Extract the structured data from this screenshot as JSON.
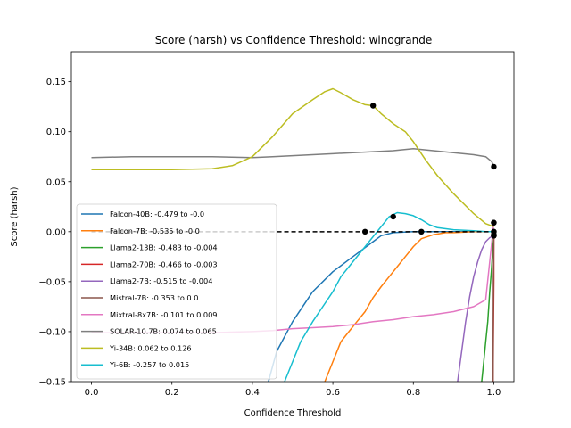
{
  "chart_data": {
    "type": "line",
    "title": "Score (harsh) vs Confidence Threshold: winogrande",
    "xlabel": "Confidence Threshold",
    "ylabel": "Score (harsh)",
    "xlim": [
      -0.05,
      1.05
    ],
    "ylim": [
      -0.15,
      0.18
    ],
    "xticks": [
      "0.0",
      "0.2",
      "0.4",
      "0.6",
      "0.8",
      "1.0"
    ],
    "xtick_values": [
      0.0,
      0.2,
      0.4,
      0.6,
      0.8,
      1.0
    ],
    "yticks": [
      "−0.15",
      "−0.10",
      "−0.05",
      "0.00",
      "0.05",
      "0.10",
      "0.15"
    ],
    "ytick_values": [
      -0.15,
      -0.1,
      -0.05,
      0.0,
      0.05,
      0.1,
      0.15
    ],
    "grid": false,
    "legend_position": "lower-left",
    "reference_line": {
      "y": 0.0,
      "x_range": [
        0.0,
        1.0
      ],
      "style": "dashed",
      "color": "#000000"
    },
    "series": [
      {
        "name": "Falcon-40B: -0.479 to -0.0",
        "color": "#1f77b4",
        "x": [
          0.44,
          0.46,
          0.5,
          0.55,
          0.6,
          0.65,
          0.7,
          0.72,
          0.75,
          0.8,
          0.85,
          0.9,
          0.95,
          1.0
        ],
        "y": [
          -0.15,
          -0.12,
          -0.09,
          -0.06,
          -0.04,
          -0.025,
          -0.01,
          -0.004,
          -0.001,
          0.0,
          0.0,
          0.0,
          0.0,
          0.0
        ],
        "marker": [
          1.0,
          0.0
        ]
      },
      {
        "name": "Falcon-7B: -0.535 to -0.0",
        "color": "#ff7f0e",
        "x": [
          0.58,
          0.6,
          0.62,
          0.64,
          0.66,
          0.68,
          0.7,
          0.72,
          0.74,
          0.76,
          0.78,
          0.8,
          0.82,
          0.85,
          0.88,
          0.9,
          0.95,
          0.98,
          1.0
        ],
        "y": [
          -0.15,
          -0.13,
          -0.11,
          -0.1,
          -0.09,
          -0.08,
          -0.066,
          -0.055,
          -0.045,
          -0.035,
          -0.025,
          -0.015,
          -0.007,
          -0.003,
          -0.001,
          -0.001,
          0.0,
          0.0,
          0.0
        ],
        "marker": [
          0.82,
          0.0
        ]
      },
      {
        "name": "Llama2-13B: -0.483 to -0.004",
        "color": "#2ca02c",
        "x": [
          0.97,
          0.975,
          0.98,
          0.985,
          0.99,
          0.994,
          0.997,
          1.0
        ],
        "y": [
          -0.15,
          -0.13,
          -0.11,
          -0.09,
          -0.06,
          -0.04,
          -0.02,
          -0.004
        ],
        "marker": [
          1.0,
          -0.004
        ]
      },
      {
        "name": "Llama2-70B: -0.466 to -0.003",
        "color": "#d62728",
        "x": [
          0.998,
          0.999,
          1.0,
          1.0
        ],
        "y": [
          -0.15,
          -0.1,
          -0.05,
          -0.003
        ],
        "marker": [
          1.0,
          -0.003
        ]
      },
      {
        "name": "Llama2-7B: -0.515 to -0.004",
        "color": "#9467bd",
        "x": [
          0.91,
          0.92,
          0.93,
          0.94,
          0.95,
          0.96,
          0.97,
          0.98,
          0.99,
          0.995,
          1.0
        ],
        "y": [
          -0.15,
          -0.12,
          -0.09,
          -0.065,
          -0.045,
          -0.03,
          -0.018,
          -0.01,
          -0.006,
          -0.005,
          -0.004
        ],
        "marker": [
          1.0,
          -0.004
        ]
      },
      {
        "name": "Mistral-7B: -0.353 to 0.0",
        "color": "#8c564b",
        "x": [
          0.998,
          0.999,
          1.0
        ],
        "y": [
          -0.15,
          -0.05,
          0.0
        ],
        "marker": [
          1.0,
          0.0
        ]
      },
      {
        "name": "Mixtral-8x7B: -0.101 to 0.009",
        "color": "#e377c2",
        "x": [
          0.0,
          0.1,
          0.2,
          0.3,
          0.4,
          0.45,
          0.5,
          0.55,
          0.6,
          0.65,
          0.7,
          0.75,
          0.8,
          0.85,
          0.9,
          0.95,
          0.98,
          1.0
        ],
        "y": [
          -0.101,
          -0.101,
          -0.101,
          -0.101,
          -0.1,
          -0.099,
          -0.097,
          -0.096,
          -0.095,
          -0.093,
          -0.09,
          -0.088,
          -0.085,
          -0.083,
          -0.08,
          -0.075,
          -0.068,
          0.009
        ],
        "marker": [
          1.0,
          0.009
        ]
      },
      {
        "name": "SOLAR-10.7B: 0.074 to 0.065",
        "color": "#7f7f7f",
        "x": [
          0.0,
          0.1,
          0.2,
          0.3,
          0.4,
          0.45,
          0.5,
          0.55,
          0.6,
          0.65,
          0.7,
          0.75,
          0.8,
          0.85,
          0.9,
          0.95,
          0.98,
          0.995,
          1.0
        ],
        "y": [
          0.074,
          0.075,
          0.075,
          0.075,
          0.074,
          0.075,
          0.076,
          0.077,
          0.078,
          0.079,
          0.08,
          0.081,
          0.083,
          0.081,
          0.079,
          0.077,
          0.075,
          0.07,
          0.065
        ],
        "marker": [
          1.0,
          0.065
        ]
      },
      {
        "name": "Yi-34B: 0.062 to 0.126",
        "color": "#bcbd22",
        "x": [
          0.0,
          0.1,
          0.2,
          0.3,
          0.35,
          0.4,
          0.45,
          0.5,
          0.55,
          0.58,
          0.6,
          0.62,
          0.65,
          0.68,
          0.7,
          0.72,
          0.75,
          0.78,
          0.8,
          0.83,
          0.86,
          0.9,
          0.95,
          0.98,
          1.0
        ],
        "y": [
          0.062,
          0.062,
          0.062,
          0.063,
          0.066,
          0.075,
          0.095,
          0.118,
          0.132,
          0.14,
          0.143,
          0.139,
          0.132,
          0.127,
          0.126,
          0.118,
          0.108,
          0.1,
          0.09,
          0.072,
          0.056,
          0.038,
          0.018,
          0.008,
          0.005
        ],
        "marker": [
          0.7,
          0.126
        ]
      },
      {
        "name": "Yi-6B: -0.257 to 0.015",
        "color": "#17becf",
        "x": [
          0.48,
          0.5,
          0.52,
          0.55,
          0.58,
          0.6,
          0.62,
          0.65,
          0.68,
          0.7,
          0.72,
          0.74,
          0.76,
          0.78,
          0.8,
          0.82,
          0.84,
          0.86,
          0.9,
          0.95,
          0.98,
          1.0
        ],
        "y": [
          -0.15,
          -0.13,
          -0.11,
          -0.09,
          -0.072,
          -0.06,
          -0.045,
          -0.03,
          -0.015,
          -0.005,
          0.005,
          0.015,
          0.019,
          0.018,
          0.016,
          0.012,
          0.007,
          0.004,
          0.002,
          0.001,
          0.0,
          0.0
        ],
        "marker": [
          0.75,
          0.015
        ]
      }
    ],
    "extra_markers": [
      [
        0.68,
        0.0
      ],
      [
        1.0,
        0.009
      ],
      [
        1.0,
        -0.004
      ]
    ]
  }
}
